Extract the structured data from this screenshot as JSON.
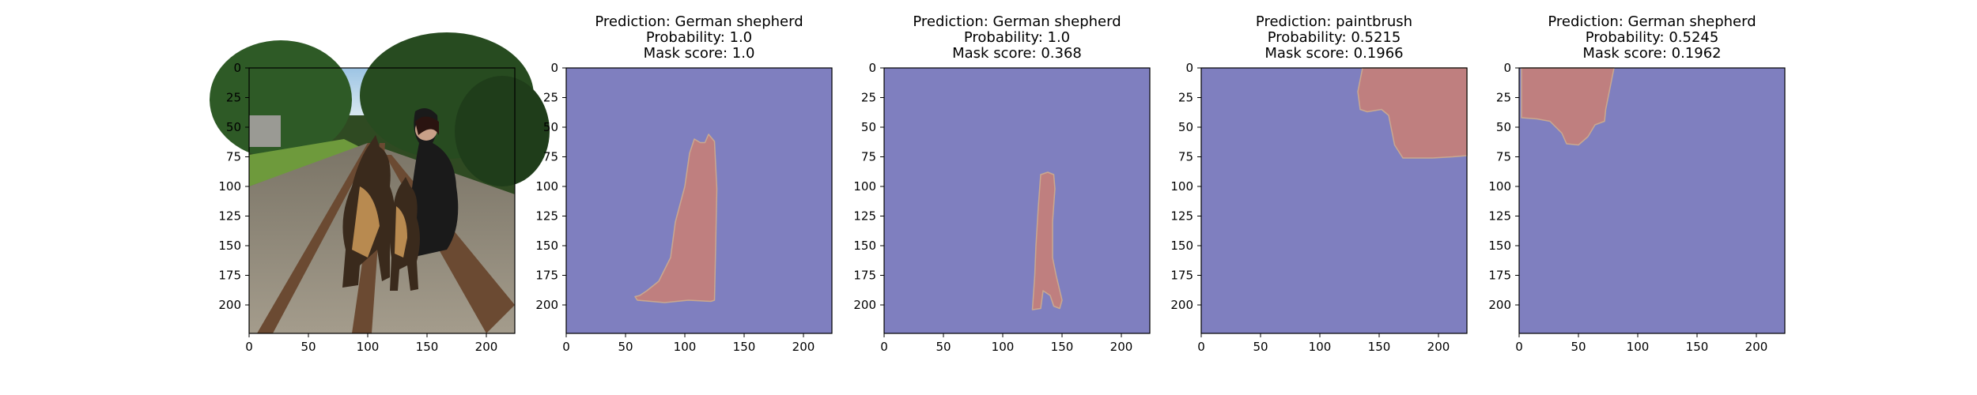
{
  "chart_data": [
    {
      "type": "image",
      "content": "photo",
      "title": "",
      "xlim": [
        0,
        224
      ],
      "ylim": [
        224,
        0
      ],
      "xticks": [
        0,
        50,
        100,
        150,
        200
      ],
      "yticks": [
        0,
        25,
        50,
        75,
        100,
        125,
        150,
        175,
        200
      ]
    },
    {
      "type": "heatmap",
      "title": [
        "Prediction: German shepherd",
        "Probability: 1.0",
        "Mask score: 1.0"
      ],
      "xlim": [
        0,
        224
      ],
      "ylim": [
        224,
        0
      ],
      "xticks": [
        0,
        50,
        100,
        150,
        200
      ],
      "yticks": [
        0,
        25,
        50,
        75,
        100,
        125,
        150,
        175,
        200
      ],
      "mask": [
        [
          62,
          192
        ],
        [
          68,
          188
        ],
        [
          78,
          180
        ],
        [
          88,
          160
        ],
        [
          92,
          130
        ],
        [
          100,
          100
        ],
        [
          104,
          72
        ],
        [
          108,
          60
        ],
        [
          113,
          63
        ],
        [
          117,
          63
        ],
        [
          120,
          56
        ],
        [
          125,
          62
        ],
        [
          127,
          102
        ],
        [
          126,
          150
        ],
        [
          125,
          196
        ],
        [
          122,
          197
        ],
        [
          103,
          196
        ],
        [
          83,
          198
        ],
        [
          60,
          196
        ],
        [
          58,
          193
        ]
      ]
    },
    {
      "type": "heatmap",
      "title": [
        "Prediction: German shepherd",
        "Probability: 1.0",
        "Mask score: 0.368"
      ],
      "xlim": [
        0,
        224
      ],
      "ylim": [
        224,
        0
      ],
      "xticks": [
        0,
        50,
        100,
        150,
        200
      ],
      "yticks": [
        0,
        25,
        50,
        75,
        100,
        125,
        150,
        175,
        200
      ],
      "mask": [
        [
          125,
          204
        ],
        [
          127,
          175
        ],
        [
          128,
          150
        ],
        [
          130,
          117
        ],
        [
          132,
          90
        ],
        [
          138,
          88
        ],
        [
          143,
          90
        ],
        [
          144,
          102
        ],
        [
          142,
          130
        ],
        [
          142,
          160
        ],
        [
          145,
          175
        ],
        [
          150,
          196
        ],
        [
          148,
          203
        ],
        [
          143,
          201
        ],
        [
          140,
          192
        ],
        [
          134,
          188
        ],
        [
          132,
          203
        ]
      ]
    },
    {
      "type": "heatmap",
      "title": [
        "Prediction: paintbrush",
        "Probability: 0.5215",
        "Mask score: 0.1966"
      ],
      "xlim": [
        0,
        224
      ],
      "ylim": [
        224,
        0
      ],
      "xticks": [
        0,
        50,
        100,
        150,
        200
      ],
      "yticks": [
        0,
        25,
        50,
        75,
        100,
        125,
        150,
        175,
        200
      ],
      "mask": [
        [
          136,
          0
        ],
        [
          224,
          0
        ],
        [
          224,
          74
        ],
        [
          212,
          75
        ],
        [
          195,
          76
        ],
        [
          170,
          76
        ],
        [
          163,
          65
        ],
        [
          160,
          50
        ],
        [
          158,
          40
        ],
        [
          152,
          35
        ],
        [
          140,
          37
        ],
        [
          134,
          35
        ],
        [
          132,
          20
        ]
      ]
    },
    {
      "type": "heatmap",
      "title": [
        "Prediction: German shepherd",
        "Probability: 0.5245",
        "Mask score: 0.1962"
      ],
      "xlim": [
        0,
        224
      ],
      "ylim": [
        224,
        0
      ],
      "xticks": [
        0,
        50,
        100,
        150,
        200
      ],
      "yticks": [
        0,
        25,
        50,
        75,
        100,
        125,
        150,
        175,
        200
      ],
      "mask": [
        [
          2,
          0
        ],
        [
          80,
          0
        ],
        [
          76,
          20
        ],
        [
          73,
          35
        ],
        [
          72,
          45
        ],
        [
          64,
          48
        ],
        [
          58,
          58
        ],
        [
          50,
          65
        ],
        [
          40,
          64
        ],
        [
          36,
          55
        ],
        [
          26,
          45
        ],
        [
          15,
          43
        ],
        [
          2,
          42
        ]
      ]
    }
  ],
  "colors": {
    "background": "#7f7fbf",
    "mask": "#bf7f7f",
    "mask_edge": "#c9a890"
  }
}
